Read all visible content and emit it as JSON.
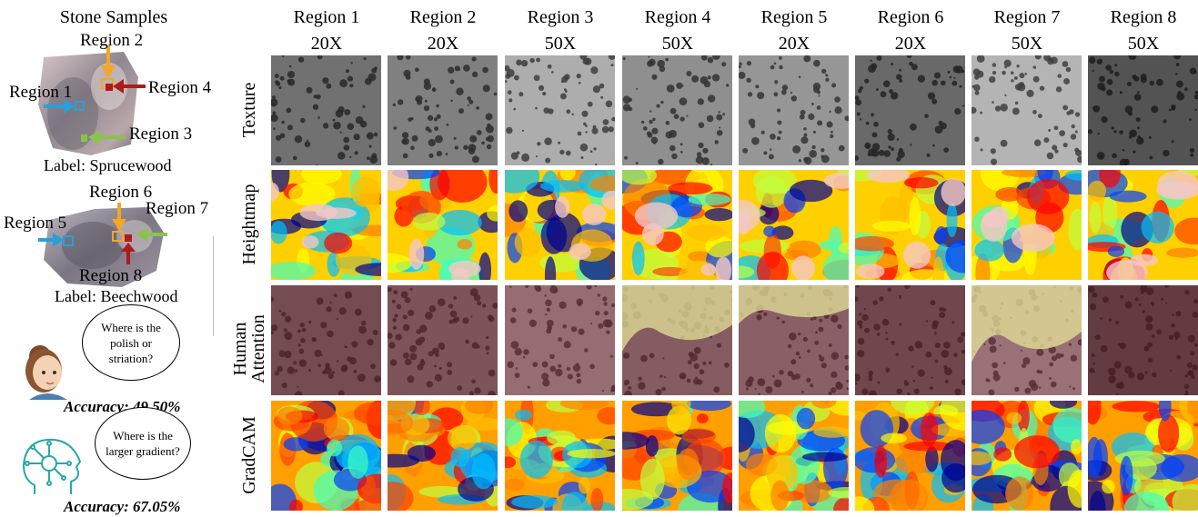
{
  "left_panel": {
    "title": "Stone Samples",
    "sample1": {
      "label": "Label: Sprucewood",
      "regions": [
        "Region 1",
        "Region 2",
        "Region 3",
        "Region 4"
      ]
    },
    "sample2": {
      "label": "Label: Beechwood",
      "regions": [
        "Region 5",
        "Region 6",
        "Region 7",
        "Region 8"
      ]
    },
    "human": {
      "question": "Where is the polish or striation?",
      "accuracy": "Accuracy: 49.50%"
    },
    "model": {
      "question": "Where is the larger gradient?",
      "accuracy": "Accuracy: 67.05%"
    }
  },
  "columns": [
    {
      "region": "Region 1",
      "mag": "20X"
    },
    {
      "region": "Region 2",
      "mag": "20X"
    },
    {
      "region": "Region 3",
      "mag": "50X"
    },
    {
      "region": "Region 4",
      "mag": "50X"
    },
    {
      "region": "Region 5",
      "mag": "20X"
    },
    {
      "region": "Region 6",
      "mag": "20X"
    },
    {
      "region": "Region 7",
      "mag": "50X"
    },
    {
      "region": "Region 8",
      "mag": "50X"
    }
  ],
  "rows": [
    {
      "label": "Texture"
    },
    {
      "label": "Heightmap"
    },
    {
      "label_line1": "Human",
      "label_line2": "Attention"
    },
    {
      "label": "GradCAM"
    }
  ],
  "colors": {
    "arrow_blue": "#2a9fd8",
    "arrow_orange": "#f5a623",
    "arrow_red": "#b11a1a",
    "arrow_green": "#8bc34a",
    "attention_tint": "#e6e39a",
    "dim_tint": "#5a1a1a"
  },
  "tiles": {
    "texture": [
      0.35,
      0.45,
      0.75,
      0.55,
      0.6,
      0.3,
      0.8,
      0.15
    ],
    "human_attention_highlight": [
      0,
      0,
      0,
      0.6,
      0.35,
      0,
      0.7,
      0
    ]
  }
}
